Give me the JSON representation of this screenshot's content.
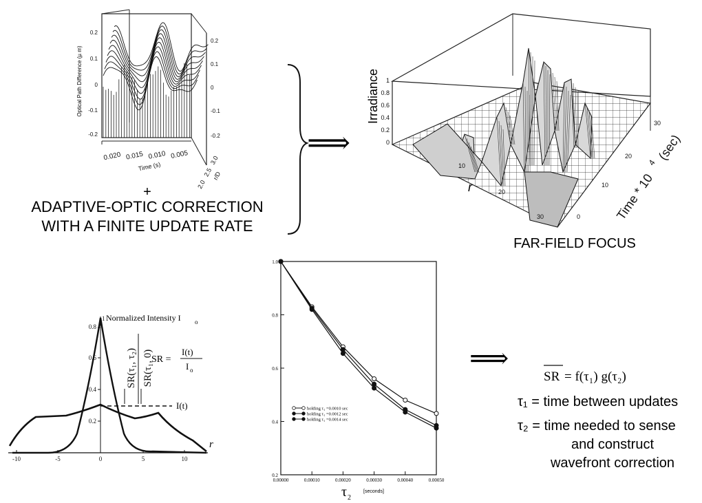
{
  "opd_plot": {
    "ylabel": "Optical Path Difference (µ m)",
    "left_ticks": [
      "0.2",
      "0.1",
      "0",
      "-0.1",
      "-0.2"
    ],
    "right_ticks": [
      "0.2",
      "0.1",
      "0",
      "-0.1",
      "-0.2"
    ],
    "time_ticks": [
      "0.020",
      "0.015",
      "0.010",
      "0.005"
    ],
    "time_label": "Time (s)",
    "rd_ticks": [
      "2.0",
      "2.5",
      "3.0"
    ],
    "rd_label": "r/D"
  },
  "plus_sign": "+",
  "correction_caption": [
    "ADAPTIVE-OPTIC CORRECTION",
    "WITH A FINITE UPDATE RATE"
  ],
  "arrow_glyph": "⟹",
  "farfield": {
    "zlabel": "Irradiance",
    "z_ticks": [
      "1",
      "0.8",
      "0.6",
      "0.4",
      "0.2",
      "0"
    ],
    "r_label": "r",
    "r_ticks": [
      "10",
      "20",
      "30"
    ],
    "time_label": "Time * 10",
    "time_exp": "4",
    "time_unit": "(sec)",
    "time_ticks": [
      "30",
      "20",
      "10",
      "0"
    ],
    "caption": "FAR-FIELD FOCUS"
  },
  "profile_plot": {
    "title": "Normalized Intensity I",
    "title_sub": "o",
    "x_ticks": [
      "-10",
      "-5",
      "0",
      "5",
      "10"
    ],
    "y_ticks": [
      "0.8",
      "0.6",
      "0.4",
      "0.2"
    ],
    "y_top": "1",
    "x_var": "r",
    "it_label": "I(t)",
    "sr_lhs": "SR =",
    "sr_num": "I(t)",
    "sr_den": "I",
    "sr_den_sub": "o"
  },
  "chart_data": {
    "type": "line",
    "x": [
      0.0,
      0.0001,
      0.0002,
      0.0003,
      0.0004,
      0.0005
    ],
    "x_tick_labels": [
      "0.00000",
      "0.00010",
      "0.00020",
      "0.00030",
      "0.00040",
      "0.00050"
    ],
    "xlabel": "τ",
    "xlabel_sub": "2",
    "xunit": "[seconds]",
    "ylabel_num": "SR(τ₁, τ₂)",
    "ylabel_den": "SR(τ₁, 0)",
    "y_tick_labels": [
      "1.0",
      "0.8",
      "0.6",
      "0.4",
      "0.2"
    ],
    "xlim": [
      0,
      0.0005
    ],
    "ylim": [
      0.2,
      1.0
    ],
    "legend_position": "lower-left",
    "series": [
      {
        "name": "holding τ₁ =0.0010 sec",
        "values": [
          1.0,
          0.83,
          0.68,
          0.56,
          0.48,
          0.43
        ],
        "marker": "open"
      },
      {
        "name": "holding τ₁ =0.0012 sec",
        "values": [
          1.0,
          0.825,
          0.67,
          0.54,
          0.445,
          0.385
        ],
        "marker": "filled"
      },
      {
        "name": "holding τ₁ =0.0014 sec",
        "values": [
          1.0,
          0.82,
          0.655,
          0.525,
          0.435,
          0.375
        ],
        "marker": "filled"
      }
    ]
  },
  "result": {
    "sr_bar": "SR",
    "equation_rest": "= f(τ₁) g(τ₂)",
    "def1": "τ₁ = time between updates",
    "def2_line1": "τ₂ = time needed to sense",
    "def2_line2": "and construct",
    "def2_line3": "wavefront correction"
  }
}
